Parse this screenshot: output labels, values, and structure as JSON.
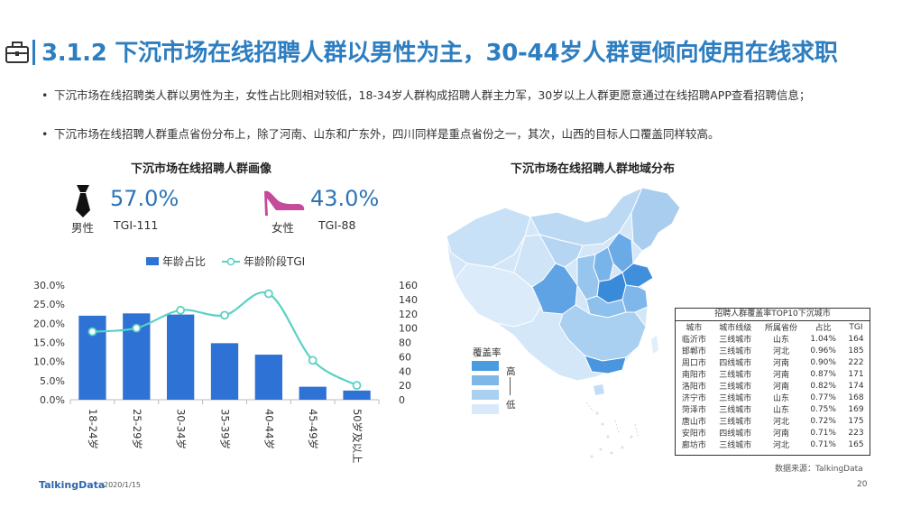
{
  "header": {
    "icon": "briefcase-icon",
    "title": "3.1.2 下沉市场在线招聘人群以男性为主，30-44岁人群更倾向使用在线求职"
  },
  "bullets": [
    "下沉市场在线招聘类人群以男性为主，女性占比则相对较低，18-34岁人群构成招聘人群主力军，30岁以上人群更愿意通过在线招聘APP查看招聘信息；",
    "下沉市场在线招聘人群重点省份分布上，除了河南、山东和广东外，四川同样是重点省份之一，其次，山西的目标人口覆盖同样较高。"
  ],
  "portrait": {
    "title": "下沉市场在线招聘人群画像",
    "male": {
      "icon": "necktie-icon",
      "label": "男性",
      "pct": "57.0%",
      "tgi": "TGI-111"
    },
    "female": {
      "icon": "high-heel-icon",
      "label": "女性",
      "pct": "43.0%",
      "tgi": "TGI-88"
    }
  },
  "chart_data": {
    "type": "bar",
    "categories": [
      "18-24岁",
      "25-29岁",
      "30-34岁",
      "35-39岁",
      "40-44岁",
      "45-49岁",
      "50岁及以上"
    ],
    "series": [
      {
        "name": "年龄占比",
        "type": "bar",
        "axis": "left",
        "values": [
          22.0,
          22.6,
          22.3,
          14.8,
          11.8,
          3.4,
          2.4
        ],
        "color": "#2e72d6"
      },
      {
        "name": "年龄阶段TGI",
        "type": "line",
        "axis": "right",
        "values": [
          95,
          100,
          125,
          118,
          148,
          55,
          20
        ],
        "color": "#5ad1c5"
      }
    ],
    "y_left": {
      "ticks": [
        "0.0%",
        "5.0%",
        "10.0%",
        "15.0%",
        "20.0%",
        "25.0%",
        "30.0%"
      ],
      "ylim": [
        0,
        30
      ]
    },
    "y_right": {
      "ticks": [
        "0",
        "20",
        "40",
        "60",
        "80",
        "100",
        "120",
        "140",
        "160"
      ],
      "ylim": [
        0,
        160
      ]
    },
    "legend_position": "top",
    "grid": false
  },
  "map": {
    "title": "下沉市场在线招聘人群地域分布",
    "legend_title": "覆盖率",
    "legend_high": "高",
    "legend_low": "低",
    "legend_colors": [
      "#4a9be0",
      "#7db8e9",
      "#a9d0f1",
      "#d8eaf9"
    ]
  },
  "top10": {
    "title": "招聘人群覆盖率TOP10下沉城市",
    "headers": [
      "城市",
      "城市线级",
      "所属省份",
      "占比",
      "TGI"
    ],
    "rows": [
      [
        "临沂市",
        "三线城市",
        "山东",
        "1.04%",
        "164"
      ],
      [
        "邯郸市",
        "三线城市",
        "河北",
        "0.96%",
        "185"
      ],
      [
        "周口市",
        "四线城市",
        "河南",
        "0.90%",
        "222"
      ],
      [
        "南阳市",
        "三线城市",
        "河南",
        "0.87%",
        "171"
      ],
      [
        "洛阳市",
        "三线城市",
        "河南",
        "0.82%",
        "174"
      ],
      [
        "济宁市",
        "三线城市",
        "山东",
        "0.77%",
        "168"
      ],
      [
        "菏泽市",
        "三线城市",
        "山东",
        "0.75%",
        "169"
      ],
      [
        "唐山市",
        "三线城市",
        "河北",
        "0.72%",
        "175"
      ],
      [
        "安阳市",
        "四线城市",
        "河南",
        "0.71%",
        "223"
      ],
      [
        "廊坊市",
        "三线城市",
        "河北",
        "0.71%",
        "165"
      ]
    ]
  },
  "footer": {
    "source": "数据来源：TalkingData",
    "brand": "TalkingData",
    "date": "2020/1/15",
    "page": "20"
  }
}
